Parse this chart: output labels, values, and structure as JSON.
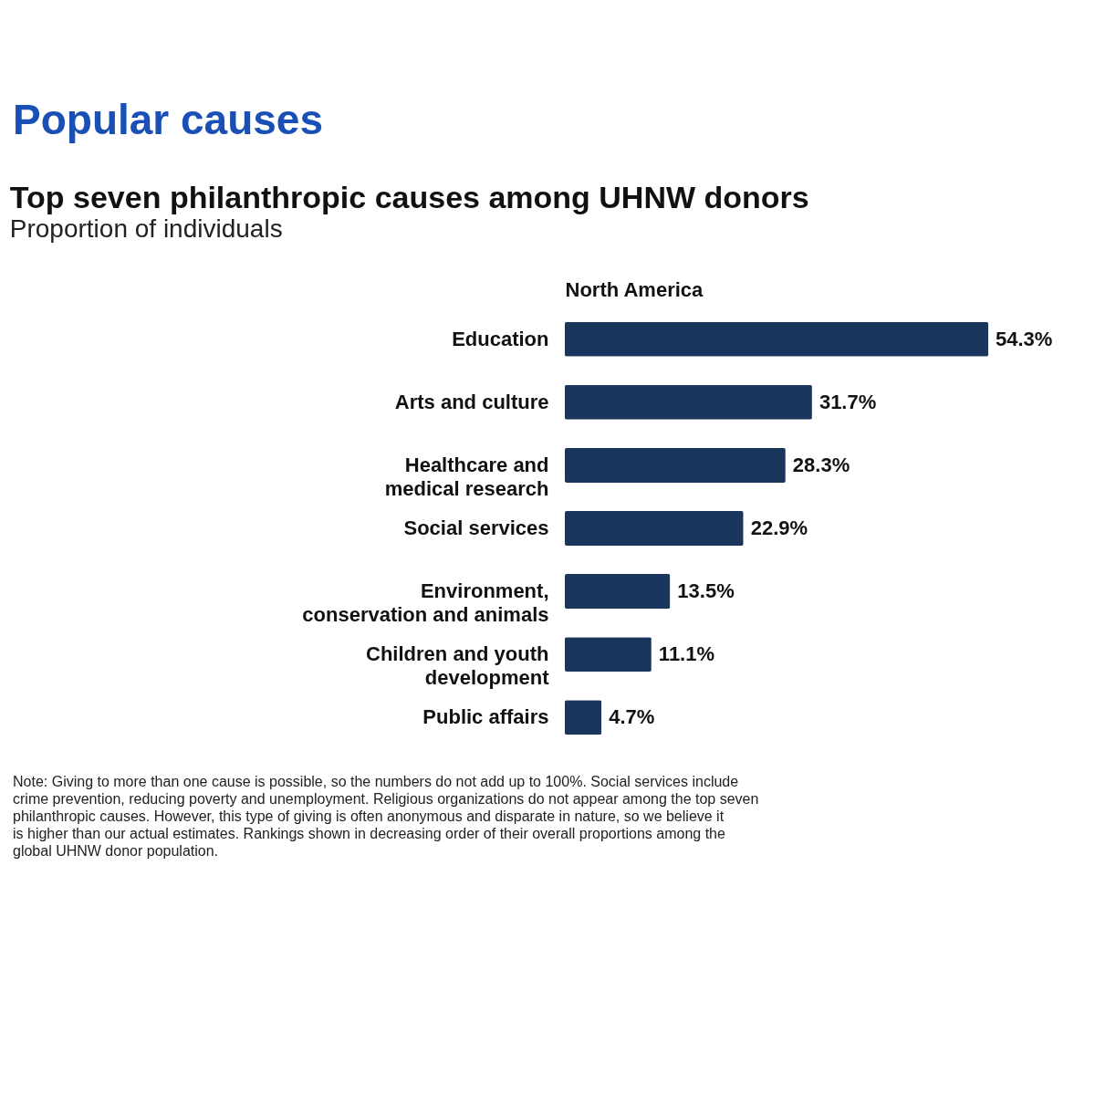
{
  "chart_data": {
    "type": "bar",
    "orientation": "horizontal",
    "title": "Top seven philanthropic causes among UHNW donors",
    "subtitle": "Proportion of individuals",
    "xlabel": "North America",
    "categories": [
      "Education",
      "Arts and culture",
      "Healthcare and\nmedical research",
      "Social services",
      "Environment,\nconservation and animals",
      "Children and youth\ndevelopment",
      "Public affairs"
    ],
    "values": [
      54.3,
      31.7,
      28.3,
      22.9,
      13.5,
      11.1,
      4.7
    ],
    "value_labels": [
      "54.3%",
      "31.7%",
      "28.3%",
      "22.9%",
      "13.5%",
      "11.1%",
      "4.7%"
    ],
    "color": "#1b365d",
    "grid": false,
    "annotations": [
      "Popular causes",
      "Note: Giving to more than one cause is possible, so the numbers do not add up to 100%. Social services include crime prevention, reducing poverty and  unemployment. Religious organizations do not appear among the top seven philanthropic causes. However, this type of giving is often anonymous and disparate in nature, so we believe it is higher than our actual estimates. Rankings shown in decreasing order of  their overall proportions among the global UHNW donor population."
    ]
  }
}
